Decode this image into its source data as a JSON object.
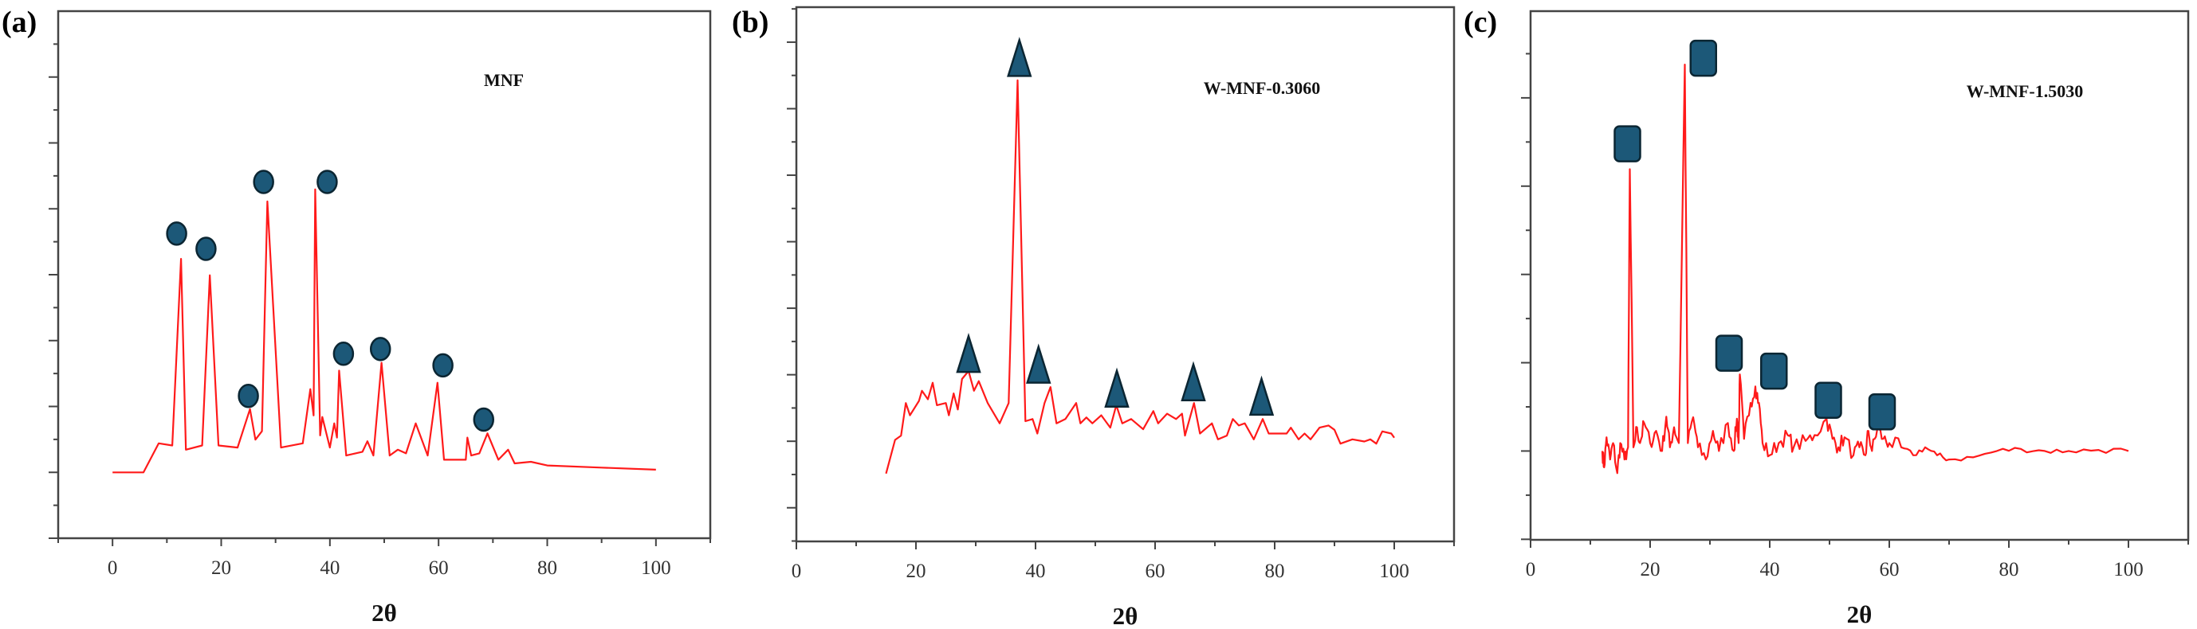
{
  "chart_data": [
    {
      "type": "line",
      "panel_label": "(a)",
      "title": "MNF",
      "xlabel": "2θ",
      "ylabel": "",
      "xlim": [
        -10,
        110
      ],
      "ylim": [
        0,
        100
      ],
      "xticks": [
        0,
        20,
        40,
        60,
        80,
        100
      ],
      "ytick_labels_shown": false,
      "grid": false,
      "line_color": "#ff1a1a",
      "marker_shape": "circle",
      "marker_color": "#1c5878",
      "series": [
        {
          "x": [
            0,
            5.7,
            8.5,
            11,
            12.6,
            13.5,
            16.5,
            17.9,
            19.5,
            23,
            25.3,
            26.3,
            27.5,
            28.5,
            31,
            35,
            36.4,
            37,
            37.3,
            38.2,
            38.6,
            40,
            40.8,
            41.3,
            41.7,
            43,
            46,
            46.9,
            48,
            49.5,
            51,
            52.5,
            54,
            55.8,
            58,
            59.8,
            61,
            65,
            65.3,
            66,
            67.5,
            69,
            71,
            72.8,
            74,
            77,
            80,
            90,
            100
          ],
          "y": [
            12.5,
            12.5,
            18,
            17.6,
            53,
            16.8,
            17.6,
            49.9,
            17.6,
            17.2,
            24.5,
            18.7,
            20.3,
            63.9,
            17.2,
            18,
            28.3,
            23.3,
            66.2,
            19.5,
            23,
            17.2,
            21.8,
            19.1,
            31.8,
            15.7,
            16.4,
            18.4,
            15.7,
            33.3,
            15.7,
            16.8,
            16.1,
            21.8,
            15.7,
            29.5,
            14.9,
            14.9,
            19.1,
            15.7,
            16.1,
            19.9,
            14.9,
            16.8,
            14.2,
            14.5,
            13.8,
            13.4,
            13
          ]
        }
      ],
      "markers": [
        {
          "x": 11.8,
          "y": 57.8
        },
        {
          "x": 17.2,
          "y": 54.9
        },
        {
          "x": 25,
          "y": 27
        },
        {
          "x": 27.8,
          "y": 67.6
        },
        {
          "x": 39.5,
          "y": 67.6
        },
        {
          "x": 42.5,
          "y": 35
        },
        {
          "x": 49.3,
          "y": 35.9
        },
        {
          "x": 60.8,
          "y": 32.8
        },
        {
          "x": 68.3,
          "y": 22.5
        }
      ]
    },
    {
      "type": "line",
      "panel_label": "(b)",
      "title": "W-MNF-0.3060",
      "xlabel": "2θ",
      "ylabel": "",
      "xlim": [
        0,
        110
      ],
      "ylim": [
        0,
        100
      ],
      "xticks": [
        0,
        20,
        40,
        60,
        80,
        100
      ],
      "ytick_labels_shown": false,
      "grid": false,
      "line_color": "#ff1a1a",
      "marker_shape": "triangle",
      "marker_color": "#1c5878",
      "series": [
        {
          "x": [
            15,
            16.5,
            17.5,
            18.3,
            19,
            20.5,
            21,
            22,
            22.8,
            23.5,
            25,
            25.5,
            26.3,
            27,
            27.7,
            28.8,
            29.7,
            30.5,
            32,
            34,
            35.5,
            37,
            38.3,
            39.5,
            40.3,
            41.5,
            42.5,
            43.5,
            45,
            46.8,
            47.5,
            48.5,
            49.5,
            51,
            52.5,
            53.5,
            54.5,
            56,
            58,
            59.7,
            60.5,
            62,
            63.5,
            64.5,
            65,
            66.5,
            67.5,
            69.5,
            70.5,
            72,
            73,
            74,
            75,
            76.5,
            78,
            79,
            82,
            82.7,
            84,
            85,
            86,
            87.5,
            89,
            90,
            91,
            93,
            95,
            96,
            97,
            98,
            99.5,
            100
          ],
          "y": [
            12.7,
            19,
            19.8,
            25.9,
            23.6,
            26.3,
            28.2,
            26.6,
            29.7,
            25.5,
            25.9,
            23.6,
            27.7,
            24.7,
            30.4,
            31.9,
            28.2,
            30,
            25.9,
            22.1,
            25.9,
            86.3,
            22.5,
            22.9,
            20.2,
            25.9,
            28.9,
            22.1,
            22.9,
            25.9,
            22.1,
            23.2,
            22.1,
            23.6,
            21.3,
            25.5,
            22.1,
            22.9,
            21,
            24.4,
            22.1,
            23.9,
            22.9,
            23.9,
            19.8,
            25.9,
            20.2,
            22.1,
            19.1,
            19.8,
            22.9,
            21.7,
            22.1,
            19.1,
            22.9,
            20.2,
            20.2,
            21.3,
            19.1,
            20.2,
            19.1,
            21.3,
            21.7,
            20.9,
            18.3,
            19.1,
            18.7,
            19.1,
            18.3,
            20.6,
            20.2,
            19.4
          ]
        }
      ],
      "markers": [
        {
          "x": 28.8,
          "y": 35
        },
        {
          "x": 37.3,
          "y": 90.4
        },
        {
          "x": 40.5,
          "y": 33
        },
        {
          "x": 53.6,
          "y": 28.5
        },
        {
          "x": 66.4,
          "y": 29.7
        },
        {
          "x": 77.8,
          "y": 27
        }
      ]
    },
    {
      "type": "line",
      "panel_label": "(c)",
      "title": "W-MNF-1.5030",
      "xlabel": "2θ",
      "ylabel": "",
      "xlim": [
        0,
        110
      ],
      "ylim": [
        0,
        100
      ],
      "xticks": [
        0,
        20,
        40,
        60,
        80,
        100
      ],
      "ytick_labels_shown": false,
      "grid": false,
      "line_color": "#ff1a1a",
      "marker_shape": "rounded-square",
      "marker_color": "#1c5878",
      "series": [
        {
          "x": [
            12,
            12.3,
            12.7,
            13.3,
            13.8,
            14.5,
            15,
            15.7,
            16.3,
            16.6,
            17.2,
            17.8,
            18.3,
            19,
            20,
            21,
            22,
            22.7,
            23.3,
            24,
            24.8,
            25.8,
            26.3,
            27.2,
            28,
            29.3,
            30.5,
            31.5,
            33,
            34,
            34.5,
            34.8,
            35,
            35.7,
            36.8,
            37.6,
            38.2,
            38.8,
            40,
            41.5,
            43,
            44,
            46,
            47.5,
            49.5,
            50.5,
            51.5,
            52.5,
            54,
            55,
            56,
            56.5,
            57.1,
            58,
            59,
            60,
            62,
            64,
            66,
            68,
            70,
            74,
            78,
            82,
            86,
            90,
            95,
            100
          ],
          "y": [
            16.8,
            13.7,
            19.4,
            15.2,
            18.3,
            12.6,
            18.3,
            15.2,
            17.5,
            70.1,
            17.5,
            21.3,
            18.3,
            22.1,
            18.3,
            20.6,
            16.8,
            23.3,
            17.5,
            21.3,
            18.3,
            89.9,
            18.3,
            23.2,
            17.5,
            15.2,
            20.6,
            16.8,
            22.1,
            16.8,
            22.9,
            18.3,
            31.3,
            19.1,
            25.9,
            29,
            25.9,
            18.3,
            16,
            18.3,
            19.8,
            17.5,
            18.7,
            19.8,
            22.9,
            19.1,
            17.5,
            19.4,
            16,
            17.5,
            16,
            20.6,
            16.8,
            21,
            19.1,
            18.3,
            17.5,
            16,
            17.5,
            16,
            15.2,
            15.6,
            16.8,
            17.2,
            16.8,
            16.8,
            17,
            16.8
          ]
        }
      ],
      "markers": [
        {
          "x": 16.2,
          "y": 74.9
        },
        {
          "x": 28.9,
          "y": 91.1
        },
        {
          "x": 33.2,
          "y": 35.3
        },
        {
          "x": 40.7,
          "y": 31.9
        },
        {
          "x": 49.8,
          "y": 26.4
        },
        {
          "x": 58.8,
          "y": 24.2
        }
      ]
    }
  ]
}
